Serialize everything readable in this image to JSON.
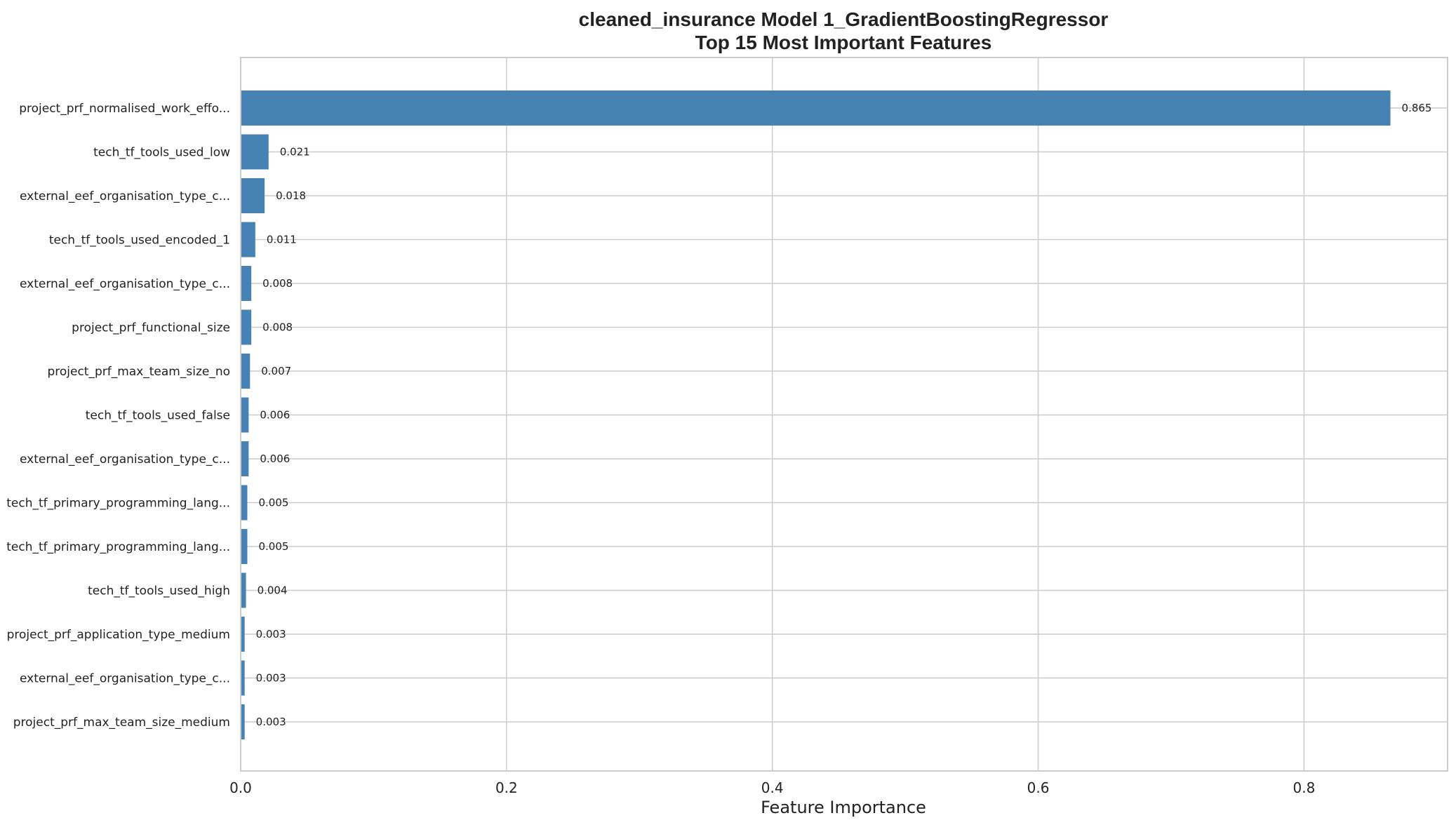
{
  "chart_data": {
    "type": "bar",
    "orientation": "horizontal",
    "title": "cleaned_insurance Model 1_GradientBoostingRegressor",
    "subtitle": "Top 15 Most Important Features",
    "xlabel": "Feature Importance",
    "ylabel": "",
    "xlim": [
      0,
      0.908
    ],
    "x_ticks": [
      0.0,
      0.2,
      0.4,
      0.6,
      0.8
    ],
    "x_tick_labels": [
      "0.0",
      "0.2",
      "0.4",
      "0.6",
      "0.8"
    ],
    "grid": true,
    "bar_color": "#4682b4",
    "categories": [
      "project_prf_normalised_work_effo...",
      "tech_tf_tools_used_low",
      "external_eef_organisation_type_c...",
      "tech_tf_tools_used_encoded_1",
      "external_eef_organisation_type_c...",
      "project_prf_functional_size",
      "project_prf_max_team_size_no",
      "tech_tf_tools_used_false",
      "external_eef_organisation_type_c...",
      "tech_tf_primary_programming_lang...",
      "tech_tf_primary_programming_lang...",
      "tech_tf_tools_used_high",
      "project_prf_application_type_medium",
      "external_eef_organisation_type_c...",
      "project_prf_max_team_size_medium"
    ],
    "values": [
      0.865,
      0.021,
      0.018,
      0.011,
      0.008,
      0.008,
      0.007,
      0.006,
      0.006,
      0.005,
      0.005,
      0.004,
      0.003,
      0.003,
      0.003
    ],
    "value_labels": [
      "0.865",
      "0.021",
      "0.018",
      "0.011",
      "0.008",
      "0.008",
      "0.007",
      "0.006",
      "0.006",
      "0.005",
      "0.005",
      "0.004",
      "0.003",
      "0.003",
      "0.003"
    ]
  }
}
